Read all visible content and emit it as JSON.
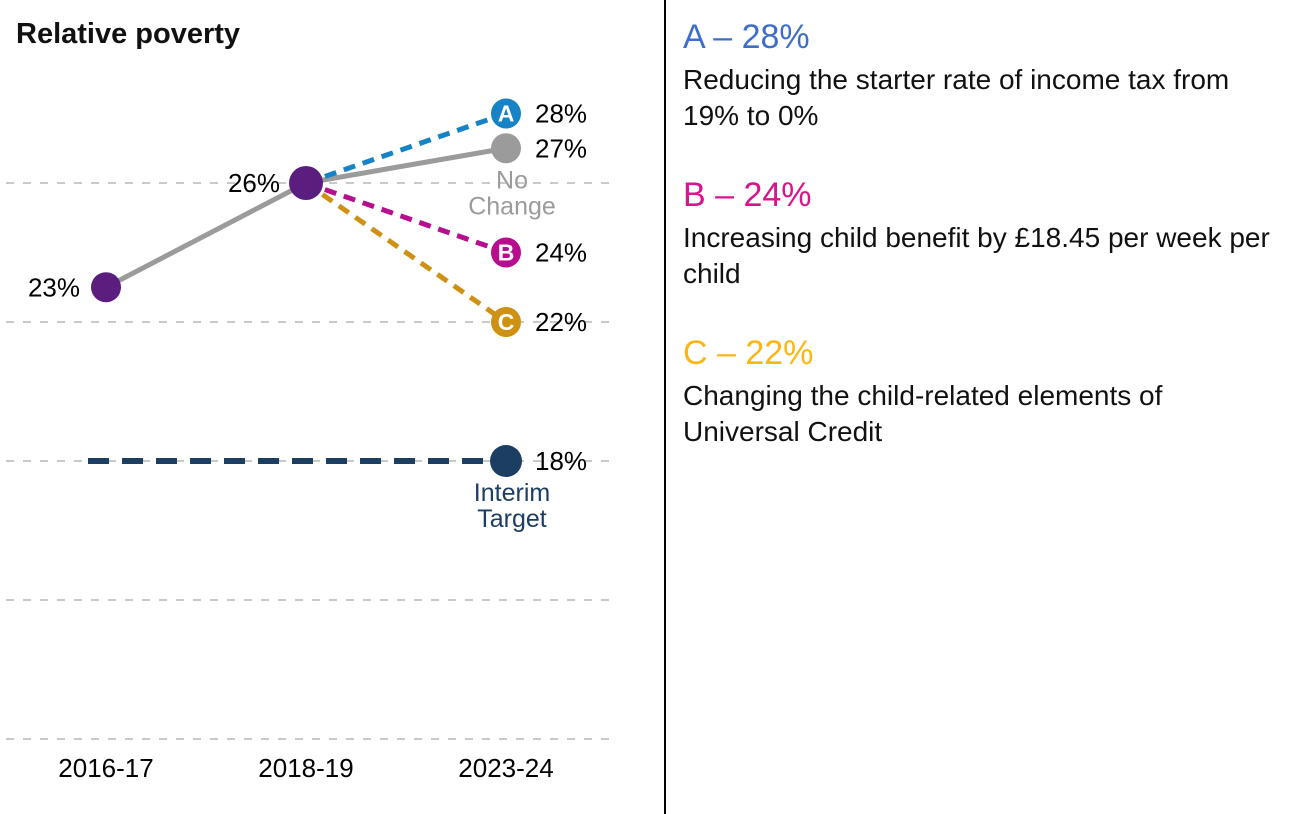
{
  "chart_data": {
    "type": "line",
    "title": "Relative poverty",
    "unit": "%",
    "categories": [
      "2016-17",
      "2018-19",
      "2023-24"
    ],
    "gridlines": [
      26,
      22,
      18,
      14,
      10
    ],
    "ylim": [
      8,
      31
    ],
    "grid_color": "#c9c9c9",
    "series": [
      {
        "name": "No Change",
        "points": [
          [
            0,
            23
          ],
          [
            1,
            26
          ],
          [
            2,
            27
          ]
        ],
        "color": "#9b9b9b",
        "style": "solid"
      },
      {
        "name": "A",
        "points": [
          [
            1,
            26
          ],
          [
            2,
            28
          ]
        ],
        "color": "#1583c5",
        "style": "dashed"
      },
      {
        "name": "B",
        "points": [
          [
            1,
            26
          ],
          [
            2,
            24
          ]
        ],
        "color": "#b80d8e",
        "style": "dashed"
      },
      {
        "name": "C",
        "points": [
          [
            1,
            26
          ],
          [
            2,
            22
          ]
        ],
        "color": "#cf9113",
        "style": "dashed"
      },
      {
        "name": "Interim Target",
        "target_value": 18,
        "color": "#1c3e63",
        "style": "long-dash"
      }
    ],
    "markers": [
      {
        "x": 0,
        "value": 23,
        "r": 15,
        "fill": "#5b1d7e"
      },
      {
        "x": 1,
        "value": 26,
        "r": 17,
        "fill": "#5b1d7e"
      },
      {
        "x": 2,
        "value": 27,
        "r": 15,
        "fill": "#9b9b9b"
      },
      {
        "x": 2,
        "value": 28,
        "r": 15,
        "fill": "#1583c5",
        "letter": "A"
      },
      {
        "x": 2,
        "value": 24,
        "r": 15,
        "fill": "#b80d8e",
        "letter": "B"
      },
      {
        "x": 2,
        "value": 22,
        "r": 15,
        "fill": "#cf9113",
        "letter": "C"
      },
      {
        "x": 2,
        "value": 18,
        "r": 16,
        "fill": "#1c3e63"
      }
    ],
    "point_labels": [
      {
        "text": "23%",
        "x": 0,
        "value": 23,
        "side": "left",
        "color": "#000000"
      },
      {
        "text": "26%",
        "x": 1,
        "value": 26,
        "side": "left",
        "color": "#000000"
      },
      {
        "text": "28%",
        "x": 2,
        "value": 28,
        "side": "right",
        "color": "#000000"
      },
      {
        "text": "27%",
        "x": 2,
        "value": 27,
        "side": "right",
        "color": "#000000"
      },
      {
        "text": "24%",
        "x": 2,
        "value": 24,
        "side": "right",
        "color": "#000000"
      },
      {
        "text": "22%",
        "x": 2,
        "value": 22,
        "side": "right",
        "color": "#000000"
      },
      {
        "text": "18%",
        "x": 2,
        "value": 18,
        "side": "right",
        "color": "#000000"
      }
    ],
    "annotations": [
      {
        "lines": [
          "No",
          "Change"
        ],
        "x": 2,
        "value": 27,
        "color": "#9b9b9b"
      },
      {
        "lines": [
          "Interim",
          "Target"
        ],
        "x": 2,
        "value": 18,
        "color": "#1c3e63"
      }
    ]
  },
  "legend": {
    "items": [
      {
        "id": "A",
        "heading": "A – 28%",
        "color": "#3d6ec9",
        "description": "Reducing the starter rate of income tax from 19% to 0%"
      },
      {
        "id": "B",
        "heading": "B – 24%",
        "color": "#d9128d",
        "description": "Increasing child benefit by £18.45 per week per child"
      },
      {
        "id": "C",
        "heading": "C – 22%",
        "color": "#fcb614",
        "description": "Changing the child-related elements of Universal Credit"
      }
    ]
  }
}
